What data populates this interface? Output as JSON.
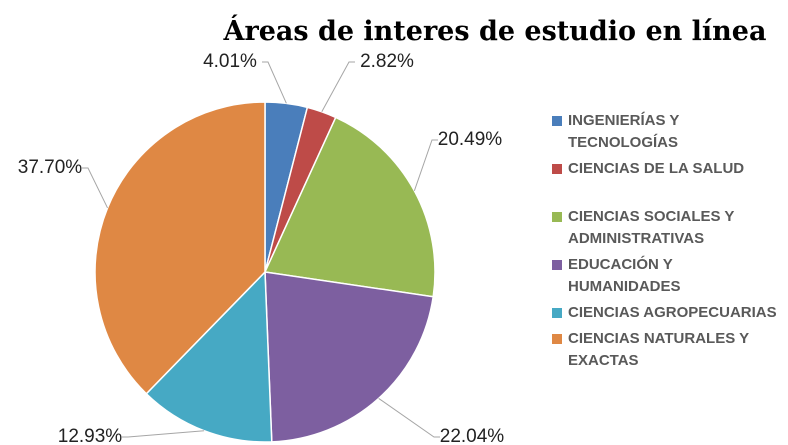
{
  "chart_data": {
    "type": "pie",
    "title": "Áreas de interes de estudio en línea",
    "categories": [
      "INGENIERÍAS Y TECNOLOGÍAS",
      "CIENCIAS DE LA SALUD",
      "CIENCIAS SOCIALES Y ADMINISTRATIVAS",
      "EDUCACIÓN Y HUMANIDADES",
      "CIENCIAS AGROPECUARIAS",
      "CIENCIAS NATURALES Y EXACTAS"
    ],
    "values": [
      4.01,
      2.82,
      20.49,
      22.04,
      12.93,
      37.7
    ],
    "value_labels": [
      "4.01%",
      "2.82%",
      "20.49%",
      "22.04%",
      "12.93%",
      "37.70%"
    ],
    "colors": [
      "#4a7ebb",
      "#be4b48",
      "#98b954",
      "#7d5fa0",
      "#46a9c4",
      "#df8844"
    ],
    "legend": "right"
  }
}
